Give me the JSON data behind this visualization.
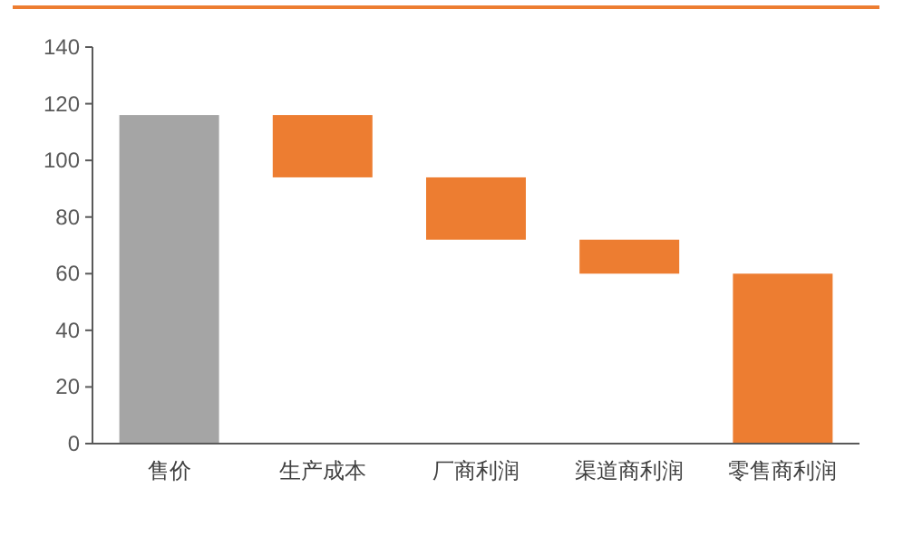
{
  "chart_data": {
    "type": "bar",
    "categories": [
      "售价",
      "生产成本",
      "厂商利润",
      "渠道商利润",
      "零售商利润"
    ],
    "values": [
      116,
      22,
      22,
      12,
      60
    ],
    "base": [
      0,
      94,
      72,
      60,
      0
    ],
    "colors": [
      "#a5a5a5",
      "#ed7d31",
      "#ed7d31",
      "#ed7d31",
      "#ed7d31"
    ],
    "ylim": [
      0,
      140
    ],
    "yticks": [
      0,
      20,
      40,
      60,
      80,
      100,
      120,
      140
    ],
    "grid": false
  }
}
